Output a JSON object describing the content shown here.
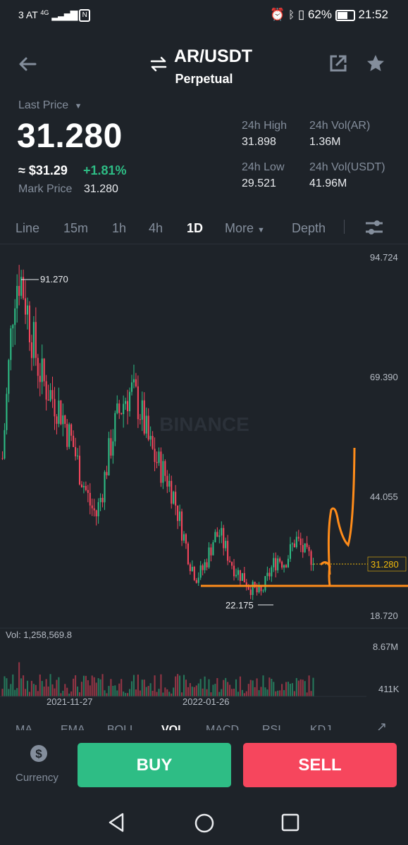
{
  "status_bar": {
    "carrier": "3 AT",
    "network": "4G",
    "battery": "62%",
    "time": "21:52"
  },
  "header": {
    "pair": "AR/USDT",
    "contract_type": "Perpetual",
    "icons": [
      "back-arrow-icon",
      "swap-icon",
      "share-icon",
      "star-icon"
    ]
  },
  "price": {
    "last_price_label": "Last Price",
    "last_price": "31.280",
    "approx": "≈ $31.29",
    "change": "+1.81%",
    "mark_label": "Mark Price",
    "mark_value": "31.280"
  },
  "stats": {
    "high_label": "24h High",
    "high_value": "31.898",
    "vol_ar_label": "24h Vol(AR)",
    "vol_ar_value": "1.36M",
    "low_label": "24h Low",
    "low_value": "29.521",
    "vol_usdt_label": "24h Vol(USDT)",
    "vol_usdt_value": "41.96M"
  },
  "timeframes": [
    "Line",
    "15m",
    "1h",
    "4h",
    "1D",
    "More",
    "Depth"
  ],
  "active_timeframe": "1D",
  "chart_data": {
    "type": "candlestick",
    "interval": "1D",
    "price_axis": [
      "94.724",
      "69.390",
      "44.055",
      "31.280",
      "18.720"
    ],
    "high_marker": "91.270",
    "low_marker": "22.175",
    "current_price_tag": "31.280",
    "watermark": "BINANCE",
    "volume_label": "Vol: 1,258,569.8",
    "volume_axis": [
      "8.67M",
      "411K"
    ],
    "dates": [
      "2021-11-27",
      "2022-01-26"
    ],
    "close_path": [
      52,
      70,
      88,
      91,
      85,
      78,
      72,
      68,
      66,
      64,
      62,
      58,
      55,
      50,
      46,
      42,
      40,
      45,
      52,
      58,
      62,
      65,
      66,
      64,
      60,
      55,
      52,
      50,
      48,
      45,
      40,
      35,
      30,
      27,
      28,
      31,
      35,
      36,
      33,
      30,
      28,
      27,
      25,
      24,
      23,
      26,
      29,
      31,
      30,
      32,
      35,
      33,
      31,
      31.28
    ],
    "colors": {
      "up": "#2ebd85",
      "down": "#f6465d",
      "annotation": "#ff8c1a"
    }
  },
  "indicators": [
    "MA",
    "EMA",
    "BOLL",
    "VOL",
    "MACD",
    "RSI",
    "KDJ"
  ],
  "active_indicator": "VOL",
  "actions": {
    "currency_label": "Currency",
    "buy_label": "BUY",
    "sell_label": "SELL"
  }
}
